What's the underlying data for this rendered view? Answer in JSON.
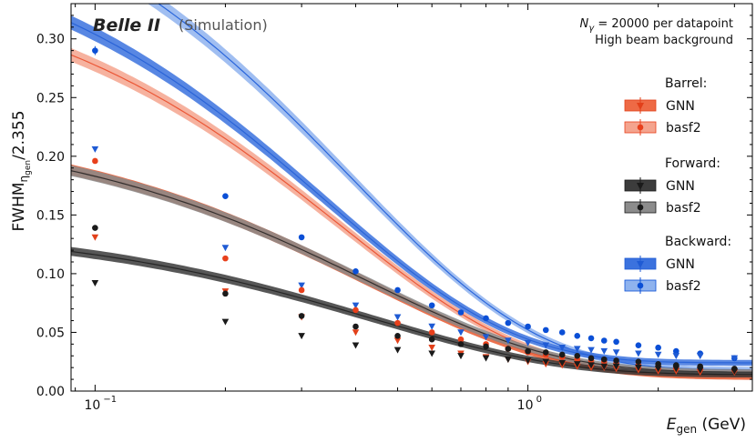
{
  "chart_data": {
    "type": "scatter",
    "title_brand": "Belle II",
    "title_suffix": "(Simulation)",
    "annotation_line1": "N",
    "annotation_line1_sub": "γ",
    "annotation_line1_rest": " = 20000 per datapoint",
    "annotation_line2": "High beam background",
    "xlabel_main": "E",
    "xlabel_sub": "gen",
    "xlabel_unit": " (GeV)",
    "ylabel_main": "FWHM",
    "ylabel_sub": "η",
    "ylabel_subsub": "gen",
    "ylabel_rest": "/2.355",
    "xscale": "log",
    "xlim": [
      0.088,
      3.3
    ],
    "ylim": [
      0.0,
      0.33
    ],
    "yticks": [
      0.0,
      0.05,
      0.1,
      0.15,
      0.2,
      0.25,
      0.3
    ],
    "ytick_labels": [
      "0.00",
      "0.05",
      "0.10",
      "0.15",
      "0.20",
      "0.25",
      "0.30"
    ],
    "xticks": [
      0.1,
      1.0
    ],
    "xtick_labels": [
      "10",
      "10"
    ],
    "xtick_exponents": [
      "−1",
      "0"
    ],
    "legend_groups": [
      {
        "title": "Barrel:",
        "entries": [
          "GNN",
          "basf2"
        ]
      },
      {
        "title": "Forward:",
        "entries": [
          "GNN",
          "basf2"
        ]
      },
      {
        "title": "Backward:",
        "entries": [
          "GNN",
          "basf2"
        ]
      }
    ],
    "x": [
      0.1,
      0.2,
      0.3,
      0.4,
      0.5,
      0.6,
      0.7,
      0.8,
      0.9,
      1.0,
      1.1,
      1.2,
      1.3,
      1.4,
      1.5,
      1.6,
      1.8,
      2.0,
      2.2,
      2.5,
      3.0
    ],
    "series": [
      {
        "name": "Backward basf2",
        "group": "Backward",
        "method": "basf2",
        "marker": "circle",
        "color": "#0b4fd6",
        "band_color": "#8fb3ee",
        "values": [
          0.29,
          0.166,
          0.131,
          0.102,
          0.086,
          0.073,
          0.067,
          0.062,
          0.058,
          0.055,
          0.052,
          0.05,
          0.047,
          0.045,
          0.043,
          0.042,
          0.039,
          0.037,
          0.034,
          0.032,
          0.028
        ],
        "fit": {
          "a": 0.018,
          "b": 0.4475,
          "c": 1.17
        }
      },
      {
        "name": "Backward GNN",
        "group": "Backward",
        "method": "GNN",
        "marker": "triangle",
        "color": "#1f5bd4",
        "band_color": "#3b72de",
        "values": [
          0.206,
          0.122,
          0.09,
          0.073,
          0.063,
          0.055,
          0.05,
          0.046,
          0.043,
          0.041,
          0.039,
          0.037,
          0.036,
          0.035,
          0.034,
          0.033,
          0.032,
          0.031,
          0.03,
          0.03,
          0.028
        ],
        "fit": {
          "a": 0.024,
          "b": 0.375,
          "c": 1.33
        }
      },
      {
        "name": "Barrel basf2",
        "group": "Barrel",
        "method": "basf2",
        "marker": "circle",
        "color": "#e8401c",
        "band_color": "#f4a48e",
        "values": [
          0.196,
          0.113,
          0.086,
          0.069,
          0.058,
          0.05,
          0.044,
          0.04,
          0.036,
          0.033,
          0.031,
          0.029,
          0.027,
          0.026,
          0.025,
          0.024,
          0.022,
          0.021,
          0.02,
          0.019,
          0.018
        ],
        "fit": {
          "a": 0.015,
          "b": 0.345,
          "c": 1.24
        }
      },
      {
        "name": "Barrel GNN",
        "group": "Barrel",
        "method": "GNN",
        "marker": "triangle",
        "color": "#e2401a",
        "band_color": "#e8582f",
        "values": [
          0.131,
          0.085,
          0.063,
          0.05,
          0.043,
          0.037,
          0.032,
          0.029,
          0.027,
          0.025,
          0.023,
          0.022,
          0.021,
          0.02,
          0.02,
          0.019,
          0.018,
          0.017,
          0.017,
          0.016,
          0.016
        ],
        "fit": {
          "a": 0.012,
          "b": 0.216,
          "c": 1.045
        }
      },
      {
        "name": "Forward basf2",
        "group": "Forward",
        "method": "basf2",
        "marker": "circle",
        "color": "#1a1a1a",
        "band_color": "#8a8a8a",
        "values": [
          0.139,
          0.083,
          0.064,
          0.055,
          0.047,
          0.044,
          0.04,
          0.038,
          0.036,
          0.034,
          0.033,
          0.031,
          0.03,
          0.028,
          0.027,
          0.026,
          0.025,
          0.023,
          0.022,
          0.021,
          0.019
        ],
        "fit": {
          "a": 0.016,
          "b": 0.211,
          "c": 1.064
        }
      },
      {
        "name": "Forward GNN",
        "group": "Forward",
        "method": "GNN",
        "marker": "triangle",
        "color": "#1a1a1a",
        "band_color": "#3a3a3a",
        "values": [
          0.092,
          0.059,
          0.047,
          0.039,
          0.035,
          0.032,
          0.03,
          0.028,
          0.027,
          0.026,
          0.025,
          0.024,
          0.023,
          0.022,
          0.021,
          0.021,
          0.02,
          0.019,
          0.019,
          0.018,
          0.017
        ],
        "fit": {
          "a": 0.014,
          "b": 0.128,
          "c": 1.025
        }
      }
    ],
    "legend_styles": {
      "Barrel": {
        "GNN": {
          "color": "#e2401a",
          "band": "#ee6a45"
        },
        "basf2": {
          "color": "#e8401c",
          "band": "#f4a48e"
        }
      },
      "Forward": {
        "GNN": {
          "color": "#1a1a1a",
          "band": "#3c3c3c"
        },
        "basf2": {
          "color": "#1a1a1a",
          "band": "#8c8c8c"
        }
      },
      "Backward": {
        "GNN": {
          "color": "#1f5bd4",
          "band": "#3b72de"
        },
        "basf2": {
          "color": "#0b4fd6",
          "band": "#8fb3ee"
        }
      }
    }
  }
}
